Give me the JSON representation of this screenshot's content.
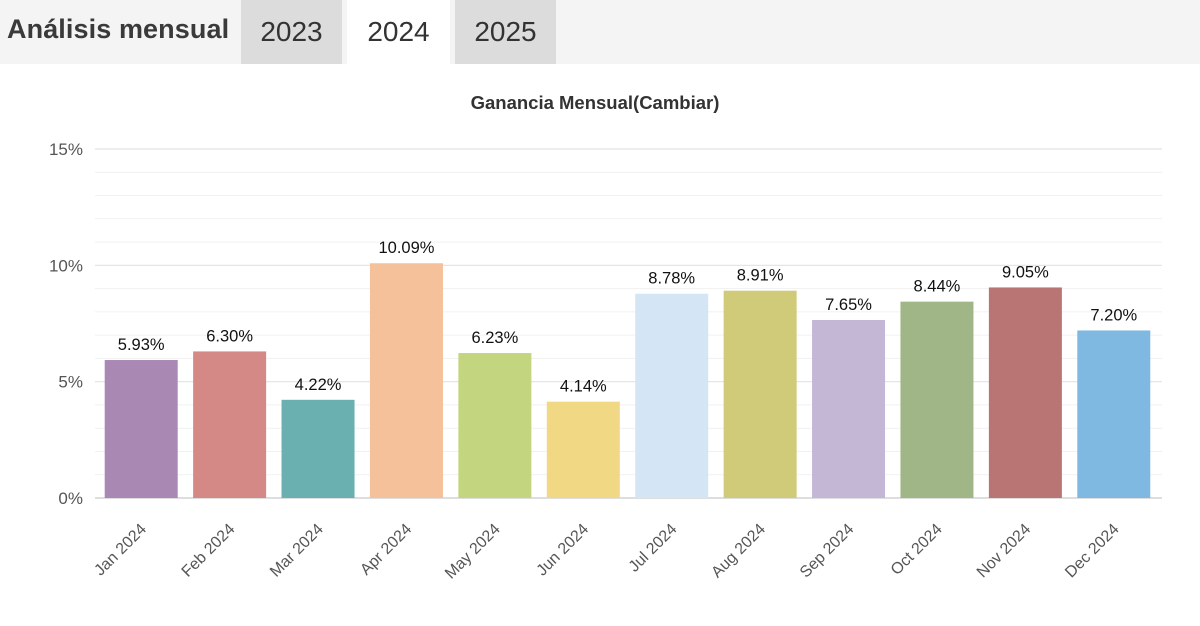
{
  "header": {
    "title": "Análisis mensual",
    "tabs": [
      {
        "label": "2023",
        "active": false
      },
      {
        "label": "2024",
        "active": true
      },
      {
        "label": "2025",
        "active": false
      }
    ]
  },
  "chart_data": {
    "type": "bar",
    "title": "Ganancia Mensual(Cambiar)",
    "xlabel": "",
    "ylabel": "",
    "ylim": [
      0,
      15
    ],
    "yticks": [
      0,
      5,
      10,
      15
    ],
    "ytick_labels": [
      "0%",
      "5%",
      "10%",
      "15%"
    ],
    "grid": true,
    "legend": "none",
    "categories": [
      "Jan 2024",
      "Feb 2024",
      "Mar 2024",
      "Apr 2024",
      "May 2024",
      "Jun 2024",
      "Jul 2024",
      "Aug 2024",
      "Sep 2024",
      "Oct 2024",
      "Nov 2024",
      "Dec 2024"
    ],
    "values": [
      5.93,
      6.3,
      4.22,
      10.09,
      6.23,
      4.14,
      8.78,
      8.91,
      7.65,
      8.44,
      9.05,
      7.2
    ],
    "labels": [
      "5.93%",
      "6.30%",
      "4.22%",
      "10.09%",
      "6.23%",
      "4.14%",
      "8.78%",
      "8.91%",
      "7.65%",
      "8.44%",
      "9.05%",
      "7.20%"
    ],
    "colors": [
      "#a988b4",
      "#d48986",
      "#6ab0b0",
      "#f4c19b",
      "#c3d57e",
      "#f0d884",
      "#d4e5f5",
      "#cfcb78",
      "#c4b7d6",
      "#a1b687",
      "#b87574",
      "#7fb8e0"
    ]
  }
}
